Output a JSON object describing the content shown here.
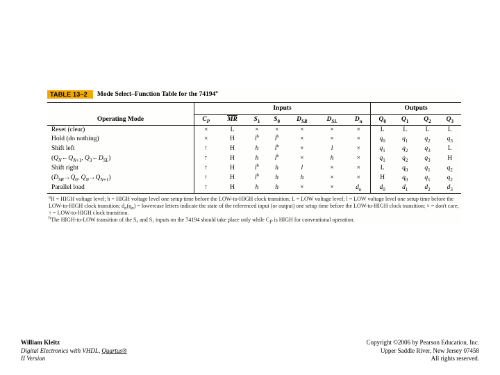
{
  "caption": {
    "tag": "TABLE 13–2",
    "title": "Mode Select–Function Table for the 74194",
    "title_sup": "a"
  },
  "group_headers": {
    "inputs": "Inputs",
    "outputs": "Outputs"
  },
  "columns": {
    "op": "Operating Mode",
    "cp": "C",
    "cp_sub": "P",
    "mr": "MR",
    "s1": "S",
    "s1_sub": "1",
    "s0": "S",
    "s0_sub": "0",
    "dsr": "D",
    "dsr_sub": "SR",
    "dsl": "D",
    "dsl_sub": "SL",
    "dn": "D",
    "dn_sub": "n",
    "q0": "Q",
    "q0_sub": "0",
    "q1": "Q",
    "q1_sub": "1",
    "q2": "Q",
    "q2_sub": "2",
    "q3": "Q",
    "q3_sub": "3"
  },
  "rows": [
    {
      "mode": "Reset (clear)",
      "cp": "×",
      "mr": "L",
      "s1": "×",
      "s0": "×",
      "dsr": "×",
      "dsl": "×",
      "dn": "×",
      "q0": "L",
      "q1": "L",
      "q2": "L",
      "q3": "L"
    },
    {
      "mode": "Hold (do nothing)",
      "cp": "×",
      "mr": "H",
      "s1": "l",
      "s1_sup": "b",
      "s0": "l",
      "s0_sup": "b",
      "dsr": "×",
      "dsl": "×",
      "dn": "×",
      "q0": "q",
      "q0_sub": "0",
      "q1": "q",
      "q1_sub": "1",
      "q2": "q",
      "q2_sub": "2",
      "q3": "q",
      "q3_sub": "3"
    },
    {
      "mode": "Shift left",
      "cp": "↑",
      "mr": "H",
      "s1": "h",
      "s0": "l",
      "s0_sup": "b",
      "dsr": "×",
      "dsl": "l",
      "dn": "×",
      "q0": "q",
      "q0_sub": "1",
      "q1": "q",
      "q1_sub": "2",
      "q2": "q",
      "q2_sub": "3",
      "q3": "L"
    },
    {
      "mode_html": "(<i>Q</i><sub><i>N</i></sub>←<i>Q</i><sub><i>N</i>+1</sub>, <i>Q</i><sub>3</sub>←<i>D</i><sub><i>SL</i></sub>)",
      "cp": "↑",
      "mr": "H",
      "s1": "h",
      "s0": "l",
      "s0_sup": "b",
      "dsr": "×",
      "dsl": "h",
      "dn": "×",
      "q0": "q",
      "q0_sub": "1",
      "q1": "q",
      "q1_sub": "2",
      "q2": "q",
      "q2_sub": "3",
      "q3": "H"
    },
    {
      "mode": "Shift right",
      "cp": "↑",
      "mr": "H",
      "s1": "l",
      "s1_sup": "b",
      "s0": "h",
      "dsr": "l",
      "dsl": "×",
      "dn": "×",
      "q0": "L",
      "q1": "q",
      "q1_sub": "0",
      "q2": "q",
      "q2_sub": "1",
      "q3": "q",
      "q3_sub": "2"
    },
    {
      "mode_html": "(<i>D</i><sub><i>SR</i></sub>→<i>Q</i><sub>0</sub>, <i>Q</i><sub><i>N</i></sub>→<i>Q</i><sub><i>N</i>+1</sub>)",
      "cp": "↑",
      "mr": "H",
      "s1": "l",
      "s1_sup": "b",
      "s0": "h",
      "dsr": "h",
      "dsl": "×",
      "dn": "×",
      "q0": "H",
      "q1": "q",
      "q1_sub": "0",
      "q2": "q",
      "q2_sub": "1",
      "q3": "q",
      "q3_sub": "2"
    },
    {
      "mode": "Parallel load",
      "cp": "↑",
      "mr": "H",
      "s1": "h",
      "s0": "h",
      "dsr": "×",
      "dsl": "×",
      "dn": "d",
      "dn_sub": "n",
      "q0": "d",
      "q0_sub": "0",
      "q1": "d",
      "q1_sub": "1",
      "q2": "d",
      "q2_sub": "2",
      "q3": "d",
      "q3_sub": "3",
      "last": true
    }
  ],
  "footnotes": {
    "a_sup": "a",
    "a": "H = HIGH voltage level; h = HIGH voltage level one setup time before the LOW-to-HIGH clock transition; L = LOW voltage level; l = LOW voltage level one setup time before the LOW-to-HIGH clock transition; d",
    "a_sub": "n",
    "a2": "(q",
    "a2_sub": "n",
    "a3": ") = lowercase letters indicate the state of the referenced input (or output) one setup time before the LOW-to-HIGH clock transition; × = don't care; ↑ = LOW-to-HIGH clock transition.",
    "b_sup": "b",
    "b": "The HIGH-to-LOW transition of the S₀ and S₁ inputs on the 74194 should take place only while C",
    "b_sub": "P",
    "b2": " is HIGH for conventional operation."
  },
  "footer_left": {
    "author": "William Kleitz",
    "book_prefix": "Digital Electronics with VHDL, ",
    "book_u": "Quartus®",
    "version": "II Version"
  },
  "footer_right": {
    "l1": "Copyright ©2006 by Pearson Education, Inc.",
    "l2": "Upper Saddle River, New Jersey 07458",
    "l3": "All rights reserved."
  }
}
